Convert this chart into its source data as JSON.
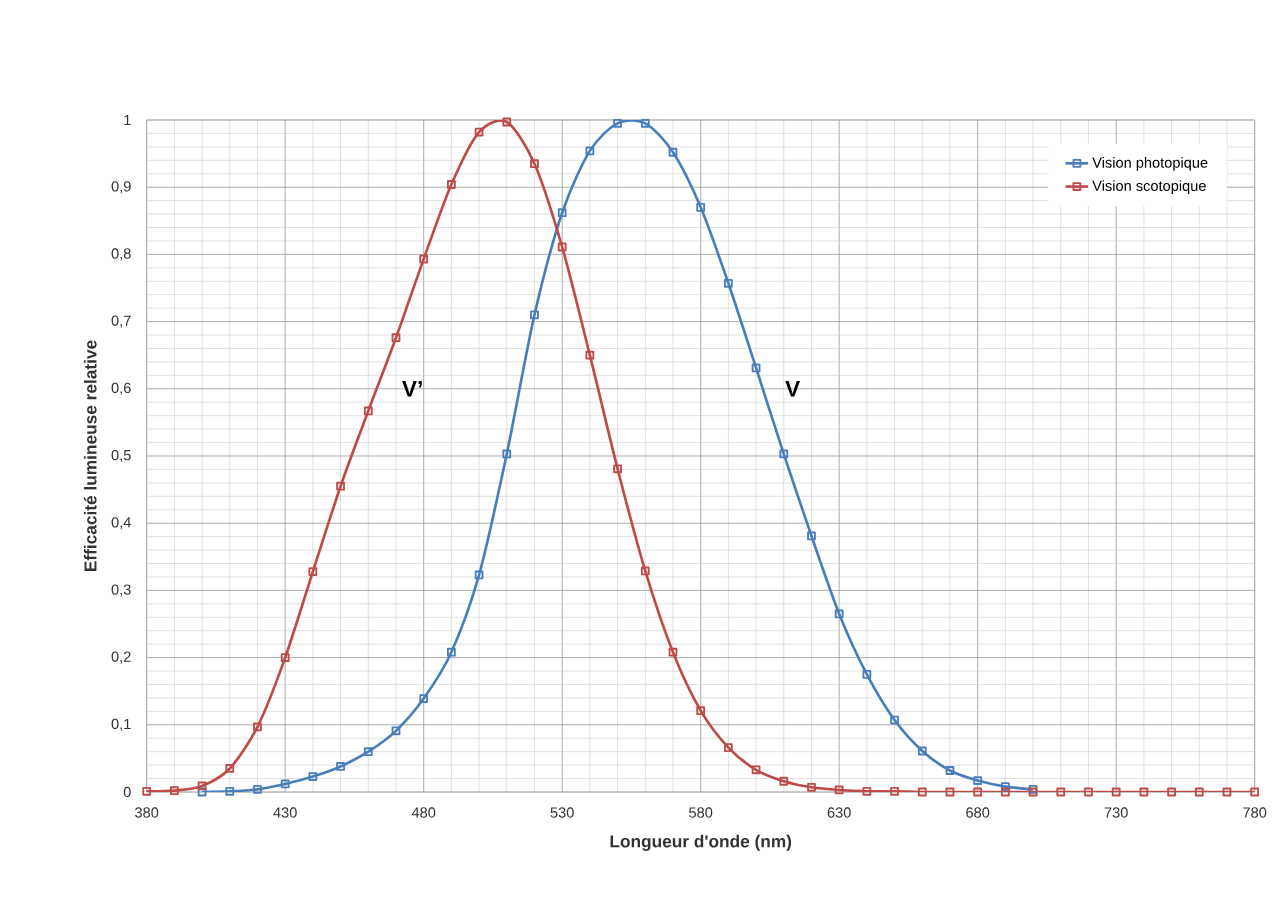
{
  "chart_data": {
    "type": "line",
    "xlabel": "Longueur d'onde (nm)",
    "ylabel": "Efficacité lumineuse relative",
    "x": [
      380,
      390,
      400,
      410,
      420,
      430,
      440,
      450,
      460,
      470,
      480,
      490,
      500,
      510,
      520,
      530,
      540,
      550,
      560,
      570,
      580,
      590,
      600,
      610,
      620,
      630,
      640,
      650,
      660,
      670,
      680,
      690,
      700,
      710,
      720,
      730,
      740,
      750,
      760,
      770,
      780
    ],
    "series": [
      {
        "name": "Vision photopique",
        "color": "#4a7ebb",
        "values": [
          null,
          null,
          0.0,
          0.001,
          0.004,
          0.012,
          0.023,
          0.038,
          0.06,
          0.091,
          0.139,
          0.208,
          0.323,
          0.503,
          0.71,
          0.862,
          0.954,
          0.995,
          0.995,
          0.952,
          0.87,
          0.757,
          0.631,
          0.503,
          0.381,
          0.265,
          0.175,
          0.107,
          0.061,
          0.032,
          0.017,
          0.008,
          0.004,
          null,
          null,
          null,
          null,
          null,
          null,
          null,
          null
        ]
      },
      {
        "name": "Vision scotopique",
        "color": "#be4b48",
        "values": [
          0.001,
          0.002,
          0.009,
          0.035,
          0.097,
          0.2,
          0.328,
          0.455,
          0.567,
          0.676,
          0.793,
          0.904,
          0.982,
          0.997,
          0.935,
          0.811,
          0.65,
          0.481,
          0.329,
          0.208,
          0.121,
          0.066,
          0.033,
          0.016,
          0.007,
          0.003,
          0.001,
          0.001,
          0.0,
          0.0,
          0.0,
          0.0,
          0.0,
          0.0,
          0.0,
          0.0,
          0.0,
          0.0,
          0.0,
          0.0,
          0.0
        ]
      }
    ],
    "xlim": [
      380,
      780
    ],
    "xticks": [
      380,
      430,
      480,
      530,
      580,
      630,
      680,
      730,
      780
    ],
    "ylim": [
      0,
      1
    ],
    "yticks": [
      {
        "value": 0,
        "label": "0"
      },
      {
        "value": 0.1,
        "label": "0,1"
      },
      {
        "value": 0.2,
        "label": "0,2"
      },
      {
        "value": 0.3,
        "label": "0,3"
      },
      {
        "value": 0.4,
        "label": "0,4"
      },
      {
        "value": 0.5,
        "label": "0,5"
      },
      {
        "value": 0.6,
        "label": "0,6"
      },
      {
        "value": 0.7,
        "label": "0,7"
      },
      {
        "value": 0.8,
        "label": "0,8"
      },
      {
        "value": 0.9,
        "label": "0,9"
      },
      {
        "value": 1,
        "label": "1"
      }
    ],
    "annotations": [
      "V’",
      "V"
    ],
    "grid": true,
    "legend": "top right",
    "marker": "square",
    "line_style": "solid"
  }
}
